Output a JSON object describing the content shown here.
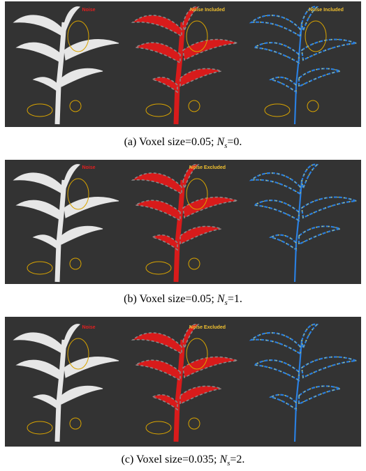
{
  "panels": [
    {
      "labels": [
        "Noise",
        "Noise Included",
        "Noise Included"
      ],
      "caption": {
        "text": "(a) Voxel size=0.05; ",
        "symbol": "N",
        "subscript": "s",
        "suffix": "=0."
      }
    },
    {
      "labels": [
        "Noise",
        "Noise Excluded"
      ],
      "caption": {
        "text": "(b) Voxel size=0.05; ",
        "symbol": "N",
        "subscript": "s",
        "suffix": "=1."
      }
    },
    {
      "labels": [
        "Noise",
        "Noise Excluded"
      ],
      "caption": {
        "text": "(c) Voxel size=0.035; ",
        "symbol": "N",
        "subscript": "s",
        "suffix": "=2."
      }
    }
  ]
}
